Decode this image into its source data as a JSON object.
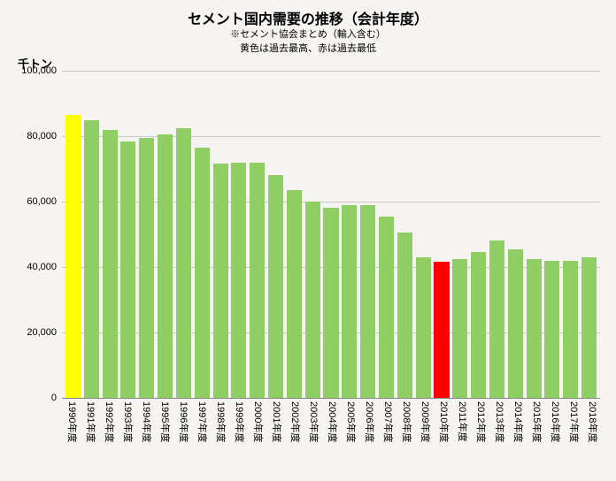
{
  "chart": {
    "type": "bar",
    "title": "セメント国内需要の推移（会計年度）",
    "title_fontsize": 16,
    "subtitle1": "※セメント協会まとめ（輸入含む）",
    "subtitle2": "黄色は過去最高、赤は過去最低",
    "subtitle_fontsize": 11,
    "y_axis_title": "千トン",
    "y_axis_title_fontsize": 13,
    "background_color": "#f5f4f2",
    "grid_color": "#c8c8c8",
    "bar_default_color": "#8fce62",
    "bar_highlight_max_color": "#ffff00",
    "bar_highlight_min_color": "#ff0000",
    "bar_width_ratio": 0.82,
    "ylim": [
      0,
      100000
    ],
    "ytick_step": 20000,
    "y_ticks": [
      0,
      20000,
      40000,
      60000,
      80000,
      100000
    ],
    "y_tick_labels": [
      "0",
      "20,000",
      "40,000",
      "60,000",
      "80,000",
      "100,000"
    ],
    "y_tick_fontsize": 11,
    "x_label_fontsize": 11,
    "x_label_rotation": 90,
    "categories": [
      "1990年度",
      "1991年度",
      "1992年度",
      "1993年度",
      "1994年度",
      "1995年度",
      "1996年度",
      "1997年度",
      "1998年度",
      "1999年度",
      "2000年度",
      "2001年度",
      "2002年度",
      "2003年度",
      "2004年度",
      "2005年度",
      "2006年度",
      "2007年度",
      "2008年度",
      "2009年度",
      "2010年度",
      "2011年度",
      "2012年度",
      "2013年度",
      "2014年度",
      "2015年度",
      "2016年度",
      "2017年度",
      "2018年度"
    ],
    "values": [
      86500,
      85000,
      82000,
      78500,
      79500,
      80500,
      82500,
      76500,
      71500,
      72000,
      72000,
      68000,
      63500,
      60000,
      58000,
      59000,
      59000,
      55500,
      50500,
      43000,
      41500,
      42500,
      44500,
      48000,
      45500,
      42500,
      42000,
      42000,
      43000
    ],
    "bar_colors": [
      "#ffff00",
      "#8fce62",
      "#8fce62",
      "#8fce62",
      "#8fce62",
      "#8fce62",
      "#8fce62",
      "#8fce62",
      "#8fce62",
      "#8fce62",
      "#8fce62",
      "#8fce62",
      "#8fce62",
      "#8fce62",
      "#8fce62",
      "#8fce62",
      "#8fce62",
      "#8fce62",
      "#8fce62",
      "#8fce62",
      "#ff0000",
      "#8fce62",
      "#8fce62",
      "#8fce62",
      "#8fce62",
      "#8fce62",
      "#8fce62",
      "#8fce62",
      "#8fce62"
    ]
  }
}
